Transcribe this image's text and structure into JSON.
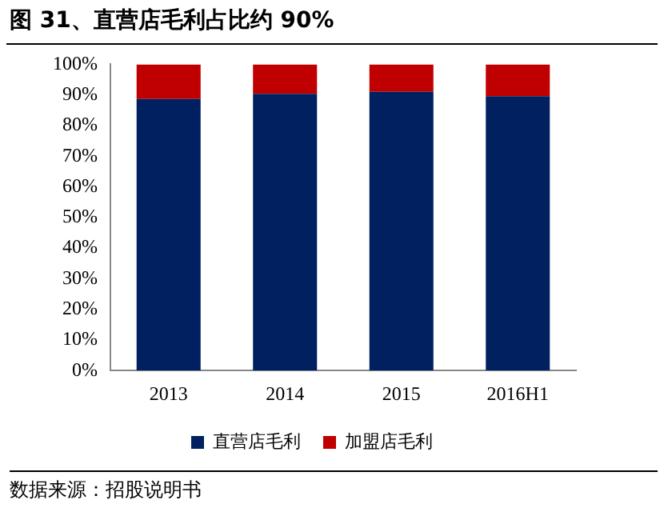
{
  "chart_data": {
    "type": "bar",
    "title": "图 31、直营店毛利占比约 90%",
    "categories": [
      "2013",
      "2014",
      "2015",
      "2016H1"
    ],
    "series": [
      {
        "name": "直营店毛利",
        "color": "#002060",
        "values": [
          88.7,
          90.4,
          91.0,
          89.6
        ]
      },
      {
        "name": "加盟店毛利",
        "color": "#c00000",
        "values": [
          11.3,
          9.6,
          9.0,
          10.4
        ]
      }
    ],
    "stacked": true,
    "ylim": [
      0,
      100
    ],
    "yticks": [
      {
        "value": 0,
        "label": "0%"
      },
      {
        "value": 10,
        "label": "10%"
      },
      {
        "value": 20,
        "label": "20%"
      },
      {
        "value": 30,
        "label": "30%"
      },
      {
        "value": 40,
        "label": "40%"
      },
      {
        "value": 50,
        "label": "50%"
      },
      {
        "value": 60,
        "label": "60%"
      },
      {
        "value": 70,
        "label": "70%"
      },
      {
        "value": 80,
        "label": "80%"
      },
      {
        "value": 90,
        "label": "90%"
      },
      {
        "value": 100,
        "label": "100%"
      }
    ],
    "grid": false,
    "legend": "bottom",
    "annotations": [
      "数据来源：招股说明书"
    ]
  }
}
